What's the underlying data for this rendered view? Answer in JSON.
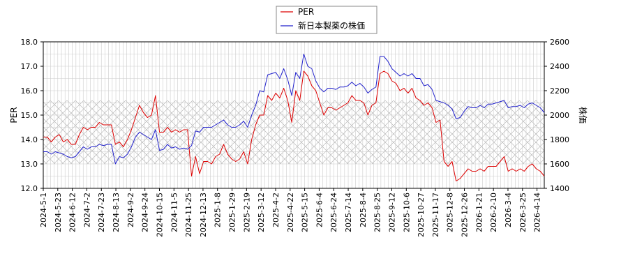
{
  "chart_data": {
    "type": "line",
    "legend": {
      "placement": "top-center",
      "entries": [
        "PER",
        "新日本製薬の株価"
      ]
    },
    "colors": {
      "per": "#dd0000",
      "price": "#2222cc",
      "grid": "#cccccc",
      "band_hatch": "#999999"
    },
    "y_left": {
      "label": "PER",
      "ylim": [
        12.0,
        18.0
      ],
      "ticks": [
        "12.0",
        "13.0",
        "14.0",
        "15.0",
        "16.0",
        "17.0",
        "18.0"
      ]
    },
    "y_right": {
      "label": "株価",
      "ylim": [
        1400,
        2600
      ],
      "ticks": [
        "1400",
        "1600",
        "1800",
        "2000",
        "2200",
        "2400",
        "2600"
      ]
    },
    "x_ticks": [
      "2024-5-1",
      "2024-5-23",
      "2024-6-12",
      "2024-7-2",
      "2024-7-23",
      "2024-8-13",
      "2024-9-2",
      "2024-9-24",
      "2024-10-15",
      "2024-11-5",
      "2024-11-25",
      "2024-12-13",
      "2025-1-8",
      "2025-1-29",
      "2025-2-19",
      "2025-3-12",
      "2025-4-2",
      "2025-4-22",
      "2025-5-15",
      "2025-6-4",
      "2025-6-24",
      "2025-7-14",
      "2025-8-4",
      "2025-8-25",
      "2025-9-12",
      "2025-10-6",
      "2025-10-27",
      "2025-11-17",
      "2025-12-8",
      "2025-12-26",
      "2026-1-21",
      "2026-2-10",
      "2026-3-4",
      "2026-3-25",
      "2026-4-14"
    ],
    "band": {
      "per_range": [
        13.0,
        15.6
      ],
      "grid": true
    },
    "series": [
      {
        "name": "PER",
        "axis": "left",
        "values": [
          14.1,
          14.1,
          13.9,
          14.1,
          14.2,
          13.9,
          14.0,
          13.8,
          13.8,
          14.2,
          14.5,
          14.4,
          14.5,
          14.5,
          14.7,
          14.6,
          14.6,
          14.6,
          13.8,
          13.9,
          13.7,
          14.0,
          14.4,
          14.9,
          15.4,
          15.1,
          14.9,
          15.0,
          15.8,
          14.3,
          14.3,
          14.5,
          14.3,
          14.4,
          14.3,
          14.4,
          14.4,
          12.5,
          13.3,
          12.6,
          13.1,
          13.1,
          13.0,
          13.3,
          13.4,
          13.8,
          13.4,
          13.2,
          13.1,
          13.2,
          13.5,
          13.0,
          14.0,
          14.6,
          15.0,
          15.0,
          15.8,
          15.6,
          15.9,
          15.7,
          16.1,
          15.6,
          14.7,
          16.0,
          15.6,
          16.8,
          16.6,
          16.2,
          16.0,
          15.5,
          15.0,
          15.3,
          15.3,
          15.2,
          15.3,
          15.4,
          15.5,
          15.8,
          15.6,
          15.6,
          15.5,
          15.0,
          15.4,
          15.5,
          16.7,
          16.8,
          16.7,
          16.4,
          16.3,
          16.0,
          16.1,
          15.9,
          16.1,
          15.7,
          15.6,
          15.4,
          15.5,
          15.3,
          14.7,
          14.8,
          13.1,
          12.9,
          13.1,
          12.3,
          12.4,
          12.6,
          12.8,
          12.7,
          12.7,
          12.8,
          12.7,
          12.9,
          12.9,
          12.9,
          13.1,
          13.3,
          12.7,
          12.8,
          12.7,
          12.8,
          12.7,
          12.9,
          13.0,
          12.8,
          12.7,
          12.5
        ]
      },
      {
        "name": "新日本製薬の株価",
        "axis": "right",
        "values": [
          1700,
          1700,
          1680,
          1700,
          1690,
          1680,
          1660,
          1650,
          1660,
          1700,
          1740,
          1720,
          1740,
          1740,
          1760,
          1750,
          1760,
          1760,
          1600,
          1660,
          1650,
          1680,
          1740,
          1820,
          1860,
          1840,
          1820,
          1800,
          1880,
          1710,
          1720,
          1760,
          1730,
          1740,
          1720,
          1730,
          1720,
          1750,
          1870,
          1860,
          1900,
          1900,
          1900,
          1920,
          1940,
          1960,
          1920,
          1900,
          1900,
          1920,
          1950,
          1900,
          2000,
          2080,
          2200,
          2190,
          2330,
          2340,
          2350,
          2300,
          2380,
          2290,
          2160,
          2350,
          2300,
          2500,
          2400,
          2380,
          2280,
          2220,
          2190,
          2220,
          2220,
          2210,
          2230,
          2230,
          2240,
          2270,
          2240,
          2260,
          2230,
          2180,
          2210,
          2230,
          2480,
          2480,
          2440,
          2380,
          2350,
          2320,
          2340,
          2320,
          2340,
          2300,
          2300,
          2240,
          2250,
          2210,
          2120,
          2110,
          2100,
          2080,
          2050,
          1970,
          1980,
          2030,
          2070,
          2060,
          2060,
          2080,
          2060,
          2090,
          2090,
          2100,
          2110,
          2120,
          2060,
          2070,
          2070,
          2080,
          2060,
          2090,
          2100,
          2080,
          2060,
          2020
        ]
      }
    ]
  }
}
